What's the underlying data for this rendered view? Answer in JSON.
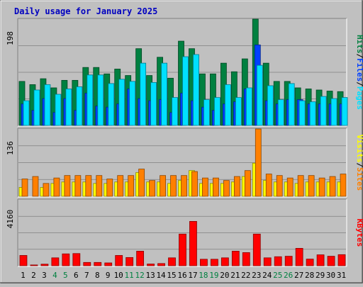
{
  "chart_data": [
    {
      "type": "bar",
      "title": "Daily usage for January 2025",
      "panel": "hits-files-pages",
      "ylabel_max": "198",
      "legend": [
        "Pages",
        "Files",
        "Hits"
      ],
      "legend_colors": [
        "#00e0ff",
        "#0040ff",
        "#008040"
      ],
      "x": [
        1,
        2,
        3,
        4,
        5,
        6,
        7,
        8,
        9,
        10,
        11,
        12,
        13,
        14,
        15,
        16,
        17,
        18,
        19,
        20,
        21,
        22,
        23,
        24,
        25,
        26,
        27,
        28,
        29,
        30,
        31
      ],
      "ylim": [
        0,
        198
      ],
      "series": [
        {
          "name": "Hits",
          "color": "#008040",
          "values": [
            82,
            76,
            87,
            70,
            84,
            84,
            108,
            108,
            96,
            105,
            93,
            143,
            93,
            127,
            88,
            157,
            143,
            96,
            96,
            116,
            100,
            124,
            198,
            116,
            82,
            82,
            70,
            68,
            66,
            64,
            63
          ]
        },
        {
          "name": "Files",
          "color": "#0040ff",
          "values": [
            40,
            28,
            50,
            24,
            50,
            28,
            60,
            36,
            34,
            40,
            68,
            50,
            46,
            48,
            24,
            60,
            46,
            34,
            28,
            40,
            44,
            68,
            150,
            46,
            40,
            48,
            48,
            40,
            40,
            40,
            40
          ]
        },
        {
          "name": "Pages",
          "color": "#00e0ff",
          "values": [
            46,
            66,
            76,
            58,
            68,
            72,
            94,
            94,
            78,
            86,
            82,
            116,
            80,
            116,
            52,
            128,
            132,
            48,
            52,
            76,
            52,
            70,
            112,
            74,
            48,
            78,
            46,
            44,
            54,
            50,
            52
          ]
        }
      ]
    },
    {
      "type": "bar",
      "panel": "sites-visits",
      "ylabel_max": "136",
      "legend": [
        "Sites",
        "Visits"
      ],
      "legend_colors": [
        "#ff8000",
        "#ffff00"
      ],
      "x": [
        1,
        2,
        3,
        4,
        5,
        6,
        7,
        8,
        9,
        10,
        11,
        12,
        13,
        14,
        15,
        16,
        17,
        18,
        19,
        20,
        21,
        22,
        23,
        24,
        25,
        26,
        27,
        28,
        29,
        30,
        31
      ],
      "ylim": [
        0,
        136
      ],
      "series": [
        {
          "name": "Visits",
          "color": "#ffff00",
          "values": [
            18,
            0,
            18,
            26,
            29,
            29,
            29,
            26,
            26,
            29,
            29,
            48,
            29,
            29,
            26,
            32,
            52,
            26,
            26,
            26,
            29,
            40,
            67,
            32,
            29,
            29,
            26,
            29,
            29,
            29,
            29
          ]
        },
        {
          "name": "Sites",
          "color": "#ff8000",
          "values": [
            35,
            40,
            26,
            37,
            42,
            42,
            42,
            42,
            35,
            42,
            42,
            55,
            32,
            42,
            42,
            42,
            50,
            37,
            37,
            32,
            40,
            52,
            136,
            45,
            42,
            37,
            42,
            42,
            37,
            40,
            45
          ]
        }
      ]
    },
    {
      "type": "bar",
      "panel": "kbytes",
      "ylabel_max": "4160",
      "legend": [
        "KBytes"
      ],
      "legend_colors": [
        "#ff0000"
      ],
      "x": [
        1,
        2,
        3,
        4,
        5,
        6,
        7,
        8,
        9,
        10,
        11,
        12,
        13,
        14,
        15,
        16,
        17,
        18,
        19,
        20,
        21,
        22,
        23,
        24,
        25,
        26,
        27,
        28,
        29,
        30,
        31
      ],
      "ylim": [
        0,
        4160
      ],
      "series": [
        {
          "name": "KBytes",
          "color": "#ff0000",
          "values": [
            650,
            50,
            100,
            500,
            750,
            770,
            210,
            210,
            180,
            650,
            520,
            920,
            110,
            140,
            500,
            2000,
            2800,
            410,
            410,
            500,
            920,
            830,
            2000,
            500,
            570,
            600,
            1100,
            420,
            690,
            600,
            700
          ]
        }
      ]
    }
  ],
  "x_label_highlight_color": "#008040",
  "highlighted_days": [
    4,
    5,
    11,
    12,
    18,
    19,
    25,
    26
  ]
}
